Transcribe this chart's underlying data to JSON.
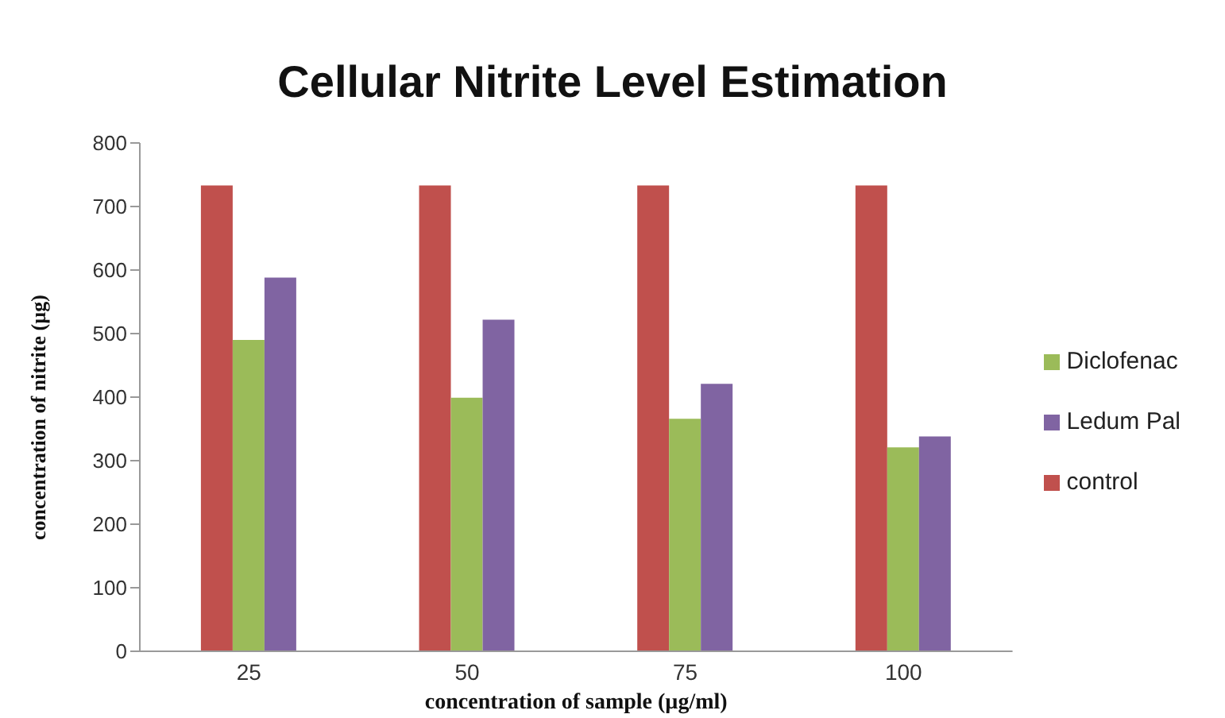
{
  "chart_data": {
    "type": "bar",
    "title": "Cellular Nitrite Level Estimation",
    "xlabel": "concentration of sample (µg/ml)",
    "ylabel": "concentration of nitrite (µg)",
    "categories": [
      "25",
      "50",
      "75",
      "100"
    ],
    "series": [
      {
        "name": "control",
        "color": "#c0504d",
        "values": [
          733,
          733,
          733,
          733
        ]
      },
      {
        "name": "Diclofenac",
        "color": "#9bbb59",
        "values": [
          490,
          399,
          366,
          321
        ]
      },
      {
        "name": "Ledum Pal",
        "color": "#8064a2",
        "values": [
          588,
          522,
          421,
          338
        ]
      }
    ],
    "ylim": [
      0,
      800
    ],
    "yticks": [
      0,
      100,
      200,
      300,
      400,
      500,
      600,
      700,
      800
    ],
    "grid": false,
    "legend": "right"
  }
}
